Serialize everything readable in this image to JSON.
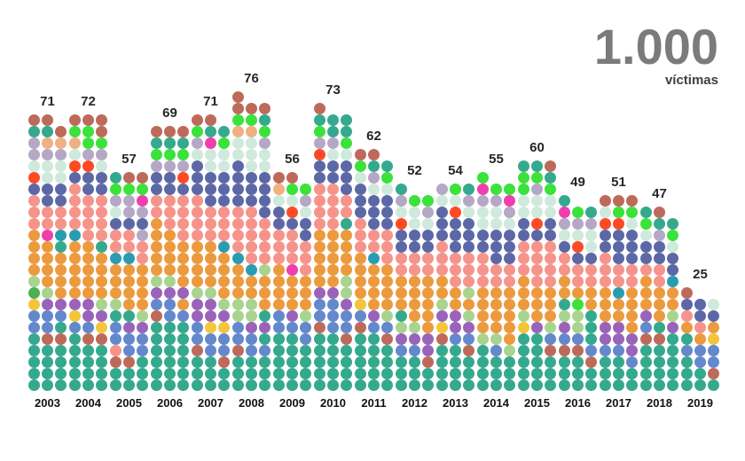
{
  "header": {
    "total": "1.000",
    "unit": "víctimas"
  },
  "chart_data": {
    "type": "waffle-column",
    "title": "1.000 víctimas",
    "total_label": "1.000",
    "unit": "víctimas",
    "total_value": 1000,
    "columns_per_year": 3,
    "legend_position": "none",
    "grid": false,
    "categories": [
      "2003",
      "2004",
      "2005",
      "2006",
      "2007",
      "2008",
      "2009",
      "2010",
      "2011",
      "2012",
      "2013",
      "2014",
      "2015",
      "2016",
      "2017",
      "2018",
      "2019"
    ],
    "values": [
      71,
      72,
      57,
      69,
      71,
      76,
      56,
      73,
      62,
      52,
      54,
      55,
      60,
      49,
      51,
      47,
      25
    ],
    "palette": {
      "te": {
        "name": "teal-green",
        "hex": "#34a98d"
      },
      "br": {
        "name": "terracotta-brown",
        "hex": "#bd6a5a"
      },
      "li": {
        "name": "bright-green",
        "hex": "#3ae23a"
      },
      "pe": {
        "name": "peach",
        "hex": "#efb184"
      },
      "la": {
        "name": "lavender-gray",
        "hex": "#b5a7c6"
      },
      "mi": {
        "name": "mint",
        "hex": "#cfe9dc"
      },
      "ro": {
        "name": "red-orange",
        "hex": "#fd4a25"
      },
      "sl": {
        "name": "slate-blue",
        "hex": "#5c68a6"
      },
      "sa": {
        "name": "salmon",
        "hex": "#f6938a"
      },
      "or": {
        "name": "orange",
        "hex": "#ec9a3e"
      },
      "ma": {
        "name": "magenta",
        "hex": "#ef3fae"
      },
      "cy": {
        "name": "dark-cyan",
        "hex": "#2a9cb2"
      },
      "sg": {
        "name": "sage-green",
        "hex": "#a8d48f"
      },
      "gr": {
        "name": "grass-green",
        "hex": "#4ab052"
      },
      "ye": {
        "name": "yellow",
        "hex": "#f3c53a"
      },
      "pu": {
        "name": "purple",
        "hex": "#9a63ba"
      },
      "bl": {
        "name": "blue",
        "hex": "#6488cc"
      }
    },
    "years": [
      {
        "label": "2003",
        "count": 71,
        "rows": [
          "br br",
          "te te br",
          "la pe pe",
          "la la la",
          "mi mi mi",
          "ro mi mi",
          "sl sl sl",
          "sa sl sl",
          "sa sa sa",
          "sa sa sa",
          "or ma cy",
          "or or te",
          "or or or",
          "or or or",
          "sg or or",
          "gr sg or",
          "ye pu pu",
          "bl bl bl",
          "bl bl te",
          "te br br",
          "te te te",
          "te te te",
          "te te te",
          "te te te"
        ]
      },
      {
        "label": "2004",
        "count": 72,
        "rows": [
          "br br br",
          "li li br",
          "pe li li",
          "mi la la",
          "ro ro mi",
          "sl sl sl",
          "sa sl sl",
          "sa sa sa",
          "sa sa sa",
          "sa sa sa",
          "cy sa sa",
          "or or te",
          "or or or",
          "or or or",
          "or or or",
          "or or or",
          "pu pu sg",
          "ye pu pu",
          "bl bl ye",
          "te br br",
          "te te te",
          "te te te",
          "te te te",
          "te te te"
        ]
      },
      {
        "label": "2005",
        "count": 57,
        "rows": [
          "te br br",
          "li li li",
          "la la ma",
          "mi la la",
          "sl sl sl",
          "sa sa la",
          "sa sa sa",
          "cy cy sa",
          "or or or",
          "or or or",
          "or or or",
          "sg or or",
          "te te sg",
          "bl pu pu",
          "bl bl bl",
          "sa bl bl",
          "br br te",
          "te te te",
          "te te te"
        ]
      },
      {
        "label": "2006",
        "count": 69,
        "rows": [
          "br br br",
          "te te te",
          "li li li",
          "la la la",
          "sl sl ro",
          "sl sl sl",
          "sa sa sa",
          "sa sa sa",
          "or sa sa",
          "or or sa",
          "or or or",
          "or or or",
          "or or or",
          "sg sg or",
          "pu pu pu",
          "bl bl or",
          "br bl bl",
          "te te te",
          "te te te",
          "te te te",
          "te te te",
          "te te te",
          "te te te"
        ]
      },
      {
        "label": "2007",
        "count": 71,
        "rows": [
          "br br",
          "li te te",
          "la ma li",
          "mi mi mi",
          "sl mi mi",
          "sl sl sl",
          "sl sl sl",
          "sa sl sl",
          "sa sa sa",
          "sa sa sa",
          "sa sa sa",
          "or or cy",
          "or or or",
          "or or or",
          "or or or",
          "sg sg or",
          "pu pu sg",
          "pu pu pu",
          "bl ye ye",
          "bl bl bl",
          "br bl bl",
          "te te br",
          "te te te",
          "te te te"
        ]
      },
      {
        "label": "2008",
        "count": 76,
        "rows": [
          "br",
          "br br br",
          "li li te",
          "pe pe li",
          "mi mi la",
          "mi mi mi",
          "sl mi mi",
          "sl sl sl",
          "sl sl sl",
          "sl sl sl",
          "sa sa sl",
          "sa sa sa",
          "sa sa sa",
          "sa sa sa",
          "cy sa sa",
          "or cy sg",
          "or or or",
          "or or or",
          "sg sg or",
          "sg sg te",
          "bl pu pu",
          "bl bl te",
          "br bl bl",
          "te te te",
          "te te te",
          "te te te"
        ]
      },
      {
        "label": "2009",
        "count": 56,
        "rows": [
          "br br",
          "pe li li",
          "mi mi la",
          "sl ro mi",
          "sl sl sl",
          "sa sa sl",
          "sa sa sa",
          "sa sa sa",
          "or ma sa",
          "or or or",
          "or or or",
          "or or or",
          "bl pu sg",
          "bl bl bl",
          "te te bl",
          "te te te",
          "te te te",
          "te te te",
          "te te te"
        ]
      },
      {
        "label": "2010",
        "count": 73,
        "rows": [
          "br",
          "te te te",
          "li te te",
          "la la li",
          "ro mi mi",
          "sl sl sl",
          "sl sl sl",
          "sa sa sl",
          "sa sa sa",
          "sa sa sa",
          "sa sa te",
          "or or or",
          "or or or",
          "or or or",
          "or or or",
          "or or sg",
          "pu pu sg",
          "bl bl pu",
          "bl bl bl",
          "br bl bl",
          "te te br",
          "te te te",
          "te te te",
          "te te te",
          "te te te"
        ]
      },
      {
        "label": "2011",
        "count": 62,
        "rows": [
          "br br",
          "li te te",
          "mi la li",
          "sl mi mi",
          "sl sl sl",
          "sl sl sl",
          "sa sl sl",
          "sa sa sa",
          "sa sa sa",
          "or cy sa",
          "or or or",
          "or or or",
          "or or or",
          "ye or or",
          "bl pu sg",
          "br bl bl",
          "te te br",
          "te te te",
          "te te te",
          "te te te",
          "te te te"
        ]
      },
      {
        "label": "2012",
        "count": 52,
        "rows": [
          "te",
          "la li li",
          "mi mi la",
          "ro mi mi",
          "sl sl sl",
          "sl sl sl",
          "sa sa sa",
          "sa sa sa",
          "or or or",
          "or or or",
          "or or or",
          "te or or",
          "sg sg or",
          "pu pu pu",
          "bl bl pu",
          "te te br",
          "te te te",
          "te te te"
        ]
      },
      {
        "label": "2013",
        "count": 54,
        "rows": [
          "la li te",
          "mi mi la",
          "sl ro mi",
          "sl sl sl",
          "sl sl sl",
          "sa sl sl",
          "sa sa sa",
          "sa sa sa",
          "or sa sa",
          "or or sg",
          "sg or or",
          "pu pu sg",
          "ye pu pu",
          "br bl bl",
          "te te br",
          "te te te",
          "te te te",
          "te te te"
        ]
      },
      {
        "label": "2014",
        "count": 55,
        "rows": [
          "li",
          "ma li li",
          "la la ma",
          "mi mi la",
          "mi mi mi",
          "sl sl sl",
          "sl sl sl",
          "sa sl sl",
          "sa sa sa",
          "sa sa sa",
          "or or or",
          "or or or",
          "or or or",
          "or or or",
          "sg sg or",
          "te bl sg",
          "te te te",
          "te te te",
          "te te te"
        ]
      },
      {
        "label": "2015",
        "count": 60,
        "rows": [
          "te te br",
          "li li te",
          "li la li",
          "mi mi mi",
          "mi mi mi",
          "sl ro sl",
          "sl sl sl",
          "sa sa sa",
          "sa sa sa",
          "sa sa sa",
          "or sa sa",
          "or or or",
          "or or or",
          "sg or or",
          "ye pu sg",
          "te te bl",
          "te te br",
          "te te te",
          "te te te",
          "te te te"
        ]
      },
      {
        "label": "2016",
        "count": 49,
        "rows": [
          "te",
          "ma li te",
          "la la la",
          "mi mi mi",
          "sl ro mi",
          "sa sl sl",
          "sa sa sa",
          "or sa sa",
          "or or or",
          "te li or",
          "sg sg te",
          "pu sg te",
          "bl bl te",
          "br br bl",
          "te te br",
          "te te te",
          "te te te"
        ]
      },
      {
        "label": "2017",
        "count": 51,
        "rows": [
          "br br br",
          "mi li li",
          "ro ro mi",
          "sl sl sl",
          "sl sl sl",
          "sa sl sl",
          "sa sa sa",
          "sa sa sa",
          "or cy or",
          "or or or",
          "or or or",
          "pu pu or",
          "pu pu pu",
          "bl bl pu",
          "te te bl",
          "te te te",
          "te te te"
        ]
      },
      {
        "label": "2018",
        "count": 47,
        "rows": [
          "te br",
          "li te te",
          "mi la li",
          "sl sl mi",
          "sl sl sl",
          "sa sa sl",
          "or sa cy",
          "or or or",
          "or or or",
          "pu or sg",
          "bl te pu",
          "br br te",
          "te te te",
          "te te te",
          "te te te",
          "te te te"
        ]
      },
      {
        "label": "2019",
        "count": 25,
        "rows": [
          "br",
          "sl sl mi",
          "sa sl sl",
          "or sa or",
          "te or ye",
          "bl bl bl",
          "te bl bl",
          "te te br",
          "te te te"
        ]
      }
    ]
  }
}
